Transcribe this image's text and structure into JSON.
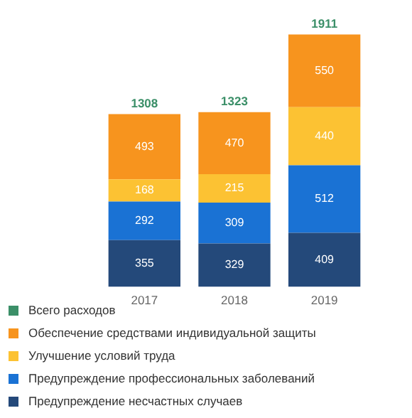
{
  "chart_data": {
    "type": "bar",
    "stacked": true,
    "categories": [
      "2017",
      "2018",
      "2019"
    ],
    "series": [
      {
        "name": "Предупреждение несчастных случаев",
        "color": "#24497a",
        "values": [
          355,
          329,
          409
        ]
      },
      {
        "name": "Предупреждение профессиональных заболеваний",
        "color": "#1a72d4",
        "values": [
          292,
          309,
          512
        ]
      },
      {
        "name": "Улучшение условий труда",
        "color": "#fcc233",
        "values": [
          168,
          215,
          440
        ]
      },
      {
        "name": "Обеспечение средствами индивидуальной защиты",
        "color": "#f7941e",
        "values": [
          493,
          470,
          550
        ]
      },
      {
        "name": "Всего расходов",
        "type": "line",
        "color": "#3b8f68",
        "values": [
          null,
          null,
          null
        ]
      }
    ],
    "totals": [
      "1308",
      "1323",
      "1911"
    ],
    "data_labels": true,
    "legend": "bottom",
    "grid": false
  }
}
